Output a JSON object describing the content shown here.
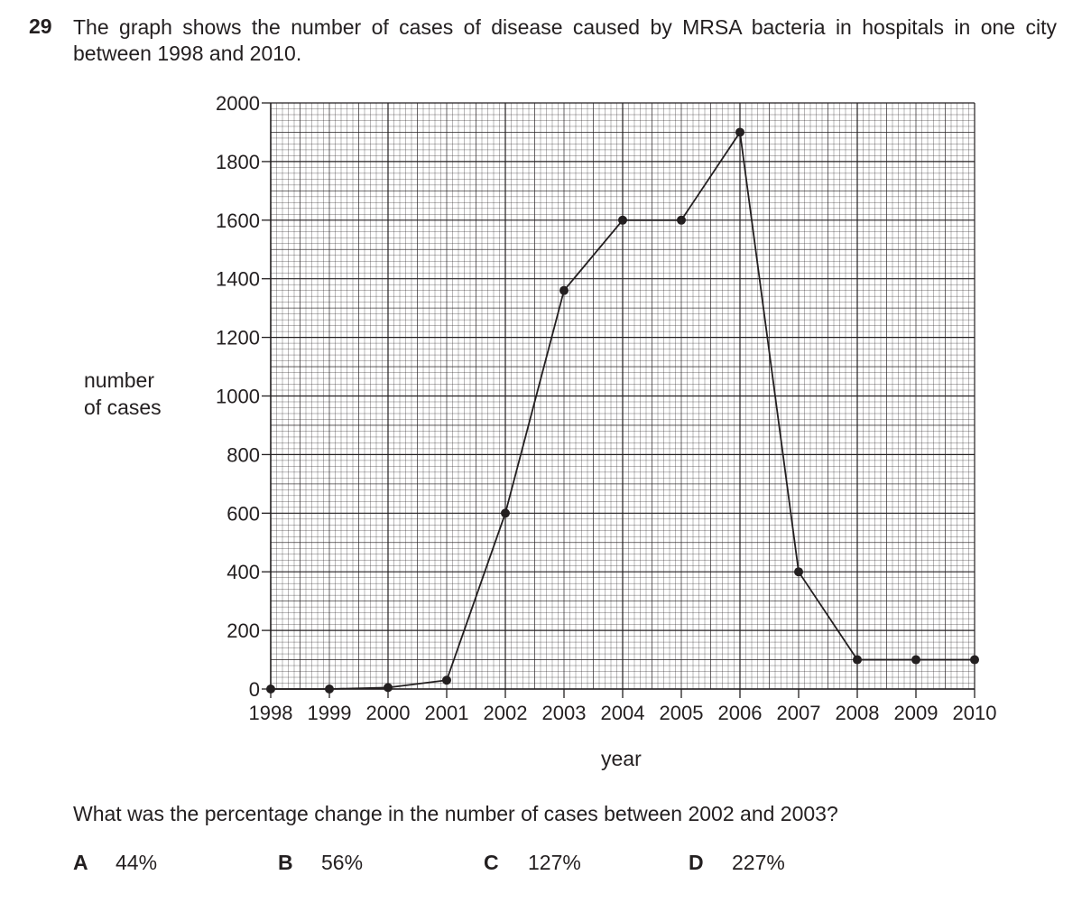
{
  "question": {
    "number": "29",
    "text": "The graph shows the number of cases of disease caused by MRSA bacteria in hospitals in one city between 1998 and 2010.",
    "prompt": "What was the percentage change in the number of cases between 2002 and 2003?",
    "options": [
      {
        "letter": "A",
        "value": "44%"
      },
      {
        "letter": "B",
        "value": "56%"
      },
      {
        "letter": "C",
        "value": "127%"
      },
      {
        "letter": "D",
        "value": "227%"
      }
    ]
  },
  "chart_data": {
    "type": "line",
    "xlabel": "year",
    "ylabel_line1": "number",
    "ylabel_line2": "of cases",
    "x": [
      1998,
      1999,
      2000,
      2001,
      2002,
      2003,
      2004,
      2005,
      2006,
      2007,
      2008,
      2009,
      2010
    ],
    "y": [
      0,
      0,
      5,
      30,
      600,
      1360,
      1600,
      1600,
      1900,
      400,
      100,
      100,
      100
    ],
    "xlim": [
      1998,
      2010
    ],
    "ylim": [
      0,
      2000
    ],
    "yticks": [
      0,
      200,
      400,
      600,
      800,
      1000,
      1200,
      1400,
      1600,
      1800,
      2000
    ],
    "grid": true,
    "line_color": "#231f20"
  }
}
